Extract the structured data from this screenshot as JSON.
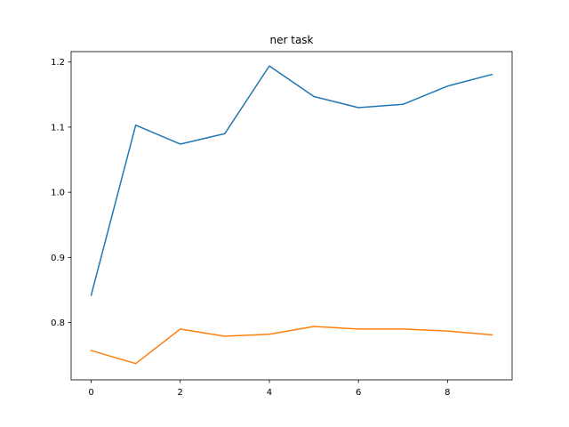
{
  "chart_data": {
    "type": "line",
    "title": "ner task",
    "xlabel": "",
    "ylabel": "",
    "x": [
      0,
      1,
      2,
      3,
      4,
      5,
      6,
      7,
      8,
      9
    ],
    "xlim": [
      -0.45,
      9.45
    ],
    "ylim": [
      0.712,
      1.216
    ],
    "xticks": [
      0,
      2,
      4,
      6,
      8
    ],
    "yticks": [
      0.8,
      0.9,
      1.0,
      1.1,
      1.2
    ],
    "ytick_labels": [
      "0.8",
      "0.9",
      "1.0",
      "1.1",
      "1.2"
    ],
    "grid": false,
    "series": [
      {
        "color": "#1f77b4",
        "values": [
          0.842,
          1.103,
          1.074,
          1.09,
          1.194,
          1.147,
          1.13,
          1.135,
          1.163,
          1.181
        ]
      },
      {
        "color": "#ff7f0e",
        "values": [
          0.757,
          0.737,
          0.79,
          0.779,
          0.782,
          0.794,
          0.79,
          0.79,
          0.787,
          0.781
        ]
      }
    ]
  }
}
